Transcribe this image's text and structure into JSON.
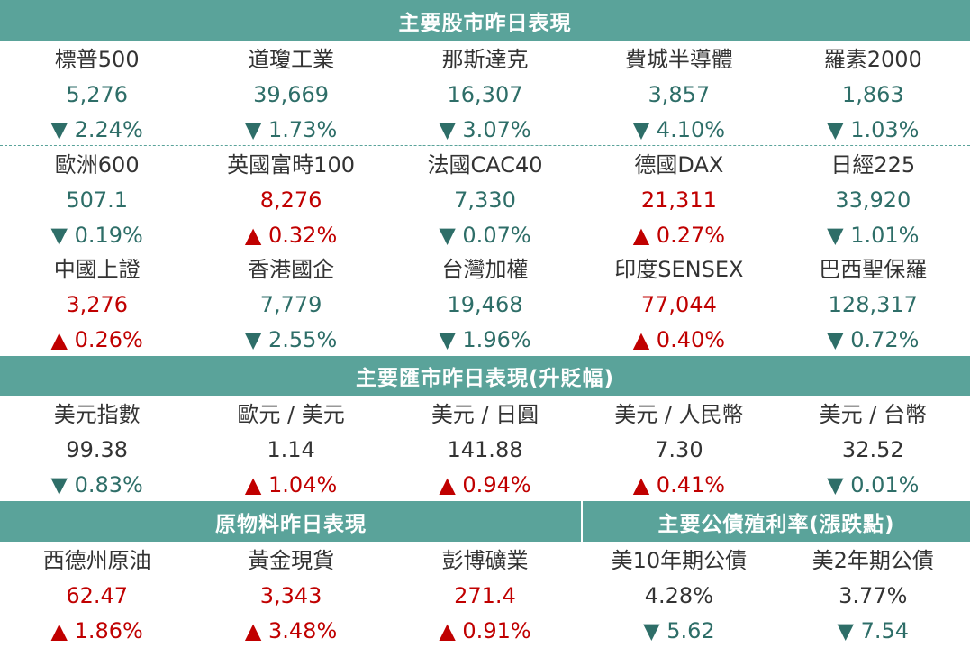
{
  "colors": {
    "banner": "#5aa39a",
    "down": "#2e6e68",
    "up": "#c00000",
    "neutral": "#333333"
  },
  "headers": {
    "stocks": "主要股市昨日表現",
    "fx": "主要匯市昨日表現(升貶幅)",
    "commodities": "原物料昨日表現",
    "bonds": "主要公債殖利率(漲跌點)"
  },
  "stocks": [
    {
      "name": "標普500",
      "value": "5,276",
      "change": "▼ 2.24%",
      "dir": "down"
    },
    {
      "name": "道瓊工業",
      "value": "39,669",
      "change": "▼ 1.73%",
      "dir": "down"
    },
    {
      "name": "那斯達克",
      "value": "16,307",
      "change": "▼ 3.07%",
      "dir": "down"
    },
    {
      "name": "費城半導體",
      "value": "3,857",
      "change": "▼ 4.10%",
      "dir": "down"
    },
    {
      "name": "羅素2000",
      "value": "1,863",
      "change": "▼ 1.03%",
      "dir": "down"
    },
    {
      "name": "歐洲600",
      "value": "507.1",
      "change": "▼ 0.19%",
      "dir": "down"
    },
    {
      "name": "英國富時100",
      "value": "8,276",
      "change": "▲ 0.32%",
      "dir": "up"
    },
    {
      "name": "法國CAC40",
      "value": "7,330",
      "change": "▼ 0.07%",
      "dir": "down"
    },
    {
      "name": "德國DAX",
      "value": "21,311",
      "change": "▲ 0.27%",
      "dir": "up"
    },
    {
      "name": "日經225",
      "value": "33,920",
      "change": "▼ 1.01%",
      "dir": "down"
    },
    {
      "name": "中國上證",
      "value": "3,276",
      "change": "▲ 0.26%",
      "dir": "up"
    },
    {
      "name": "香港國企",
      "value": "7,779",
      "change": "▼ 2.55%",
      "dir": "down"
    },
    {
      "name": "台灣加權",
      "value": "19,468",
      "change": "▼ 1.96%",
      "dir": "down"
    },
    {
      "name": "印度SENSEX",
      "value": "77,044",
      "change": "▲ 0.40%",
      "dir": "up"
    },
    {
      "name": "巴西聖保羅",
      "value": "128,317",
      "change": "▼ 0.72%",
      "dir": "down"
    }
  ],
  "fx": [
    {
      "name": "美元指數",
      "value": "99.38",
      "change": "▼ 0.83%",
      "dir": "down"
    },
    {
      "name": "歐元 / 美元",
      "value": "1.14",
      "change": "▲ 1.04%",
      "dir": "up"
    },
    {
      "name": "美元 / 日圓",
      "value": "141.88",
      "change": "▲ 0.94%",
      "dir": "up"
    },
    {
      "name": "美元 / 人民幣",
      "value": "7.30",
      "change": "▲ 0.41%",
      "dir": "up"
    },
    {
      "name": "美元 / 台幣",
      "value": "32.52",
      "change": "▼ 0.01%",
      "dir": "down"
    }
  ],
  "commodities": [
    {
      "name": "西德州原油",
      "value": "62.47",
      "change": "▲ 1.86%",
      "dir": "up"
    },
    {
      "name": "黃金現貨",
      "value": "3,343",
      "change": "▲ 3.48%",
      "dir": "up"
    },
    {
      "name": "彭博礦業",
      "value": "271.4",
      "change": "▲ 0.91%",
      "dir": "up"
    }
  ],
  "bonds": [
    {
      "name": "美10年期公債",
      "value": "4.28%",
      "change": "▼ 5.62",
      "dir": "down"
    },
    {
      "name": "美2年期公債",
      "value": "3.77%",
      "change": "▼ 7.54",
      "dir": "down"
    }
  ]
}
